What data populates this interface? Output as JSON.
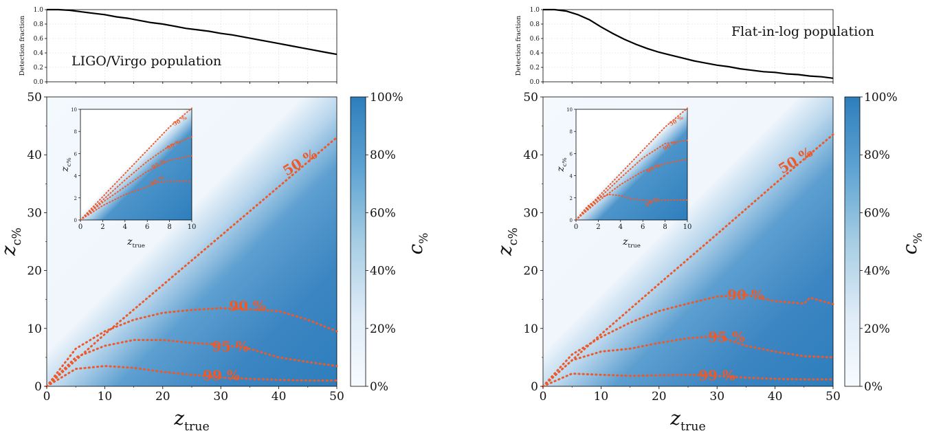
{
  "chart_data": [
    {
      "panel": "left",
      "type": "line",
      "role": "detection-fraction",
      "ylabel": "Detection fraction",
      "annotation": "LIGO/Virgo population",
      "xlim": [
        0,
        50
      ],
      "ylim": [
        0,
        1
      ],
      "yticks": [
        "0.0",
        "0.2",
        "0.4",
        "0.6",
        "0.8",
        "1.0"
      ],
      "grid": true,
      "x": [
        0,
        2,
        4,
        6,
        8,
        10,
        12,
        14,
        16,
        18,
        20,
        22,
        24,
        26,
        28,
        30,
        32,
        34,
        36,
        38,
        40,
        42,
        44,
        46,
        48,
        50
      ],
      "y": [
        1.0,
        1.0,
        0.99,
        0.97,
        0.95,
        0.93,
        0.9,
        0.88,
        0.85,
        0.82,
        0.8,
        0.77,
        0.74,
        0.72,
        0.7,
        0.67,
        0.65,
        0.62,
        0.59,
        0.56,
        0.53,
        0.5,
        0.47,
        0.44,
        0.41,
        0.38
      ]
    },
    {
      "panel": "left",
      "type": "heatmap",
      "xlabel": "z_true",
      "ylabel": "z_c%",
      "xlim": [
        0,
        50
      ],
      "ylim": [
        0,
        50
      ],
      "xticks": [
        "0",
        "10",
        "20",
        "30",
        "40",
        "50"
      ],
      "yticks": [
        "0",
        "10",
        "20",
        "30",
        "40",
        "50"
      ],
      "colorbar": {
        "label": "c%",
        "ticks": [
          "0%",
          "20%",
          "40%",
          "60%",
          "80%",
          "100%"
        ],
        "cmap": [
          "#f7fbff",
          "#2e7ebc"
        ]
      },
      "contours": [
        {
          "level": "50 %",
          "x": [
            0,
            10,
            20,
            30,
            40,
            50
          ],
          "y": [
            0,
            9,
            17.5,
            26,
            34.5,
            43
          ]
        },
        {
          "level": "90 %",
          "x": [
            0,
            5,
            10,
            15,
            20,
            25,
            30,
            35,
            40,
            45,
            50
          ],
          "y": [
            0,
            6.5,
            9.5,
            11.5,
            12.7,
            13.2,
            13.5,
            13.3,
            13,
            11.5,
            9.5
          ]
        },
        {
          "level": "95 %",
          "x": [
            0,
            5,
            10,
            15,
            20,
            25,
            30,
            35,
            40,
            45,
            50
          ],
          "y": [
            0,
            5,
            7,
            8,
            8,
            7.5,
            7.2,
            6.5,
            5,
            4.2,
            3.5
          ]
        },
        {
          "level": "99 %",
          "x": [
            0,
            5,
            10,
            15,
            20,
            25,
            30,
            35,
            40,
            45,
            50
          ],
          "y": [
            0,
            3,
            3.5,
            3.2,
            2.5,
            2,
            1.5,
            1.3,
            1.1,
            1.0,
            1.0
          ]
        }
      ],
      "inset": {
        "xlabel": "z_true",
        "ylabel": "z_c%",
        "xlim": [
          0,
          10
        ],
        "ylim": [
          0,
          10
        ],
        "xticks": [
          "0",
          "2",
          "4",
          "6",
          "8",
          "10"
        ],
        "yticks": [
          "0",
          "2",
          "4",
          "6",
          "8",
          "10"
        ],
        "contours": [
          {
            "level": "50 %",
            "x": [
              0,
              2,
              4,
              6,
              8,
              10
            ],
            "y": [
              0,
              2.1,
              4.2,
              6.3,
              8.4,
              10.1
            ]
          },
          {
            "level": "90 %",
            "x": [
              0,
              2,
              4,
              6,
              8,
              10
            ],
            "y": [
              0,
              1.8,
              3.6,
              5.3,
              6.7,
              7.5
            ]
          },
          {
            "level": "95 %",
            "x": [
              0,
              2,
              4,
              6,
              8,
              10
            ],
            "y": [
              0,
              1.6,
              3.0,
              4.4,
              5.4,
              5.8
            ]
          },
          {
            "level": "99 %",
            "x": [
              0,
              2,
              4,
              6,
              7,
              8,
              10
            ],
            "y": [
              0,
              1.3,
              2.3,
              3.0,
              3.4,
              3.5,
              3.5
            ]
          }
        ]
      }
    },
    {
      "panel": "right",
      "type": "line",
      "role": "detection-fraction",
      "ylabel": "Detection fraction",
      "annotation": "Flat-in-log population",
      "xlim": [
        0,
        50
      ],
      "ylim": [
        0,
        1
      ],
      "yticks": [
        "0.0",
        "0.2",
        "0.4",
        "0.6",
        "0.8",
        "1.0"
      ],
      "grid": true,
      "x": [
        0,
        2,
        4,
        6,
        8,
        10,
        12,
        14,
        16,
        18,
        20,
        22,
        24,
        26,
        28,
        30,
        32,
        34,
        36,
        38,
        40,
        42,
        44,
        46,
        48,
        50
      ],
      "y": [
        1.0,
        1.0,
        0.98,
        0.93,
        0.86,
        0.76,
        0.67,
        0.59,
        0.52,
        0.46,
        0.41,
        0.37,
        0.33,
        0.29,
        0.26,
        0.23,
        0.21,
        0.18,
        0.16,
        0.14,
        0.13,
        0.11,
        0.1,
        0.08,
        0.07,
        0.05
      ]
    },
    {
      "panel": "right",
      "type": "heatmap",
      "xlabel": "z_true",
      "ylabel": "z_c%",
      "xlim": [
        0,
        50
      ],
      "ylim": [
        0,
        50
      ],
      "xticks": [
        "0",
        "10",
        "20",
        "30",
        "40",
        "50"
      ],
      "yticks": [
        "0",
        "10",
        "20",
        "30",
        "40",
        "50"
      ],
      "colorbar": {
        "label": "c%",
        "ticks": [
          "0%",
          "20%",
          "40%",
          "60%",
          "80%",
          "100%"
        ],
        "cmap": [
          "#f7fbff",
          "#2e7ebc"
        ]
      },
      "contours": [
        {
          "level": "50 %",
          "x": [
            0,
            10,
            20,
            30,
            40,
            50
          ],
          "y": [
            0,
            9,
            17.7,
            26.3,
            35,
            43.5
          ]
        },
        {
          "level": "90 %",
          "x": [
            0,
            5,
            10,
            15,
            20,
            25,
            30,
            35,
            40,
            45,
            46,
            50
          ],
          "y": [
            0,
            5.5,
            8.5,
            11,
            13,
            14.3,
            15.5,
            15.8,
            14.7,
            14.3,
            15.3,
            14.2
          ]
        },
        {
          "level": "95 %",
          "x": [
            0,
            5,
            10,
            15,
            20,
            25,
            30,
            35,
            40,
            45,
            50
          ],
          "y": [
            0,
            4.5,
            6,
            6.5,
            7.5,
            8.3,
            8.7,
            7,
            6,
            5.2,
            5.0
          ]
        },
        {
          "level": "99 %",
          "x": [
            0,
            5,
            10,
            15,
            20,
            25,
            30,
            35,
            40,
            45,
            50
          ],
          "y": [
            0,
            2.2,
            2,
            1.8,
            1.9,
            2,
            1.8,
            1.5,
            1.3,
            1.2,
            1.2
          ]
        }
      ],
      "inset": {
        "xlabel": "z_true",
        "ylabel": "z_c%",
        "xlim": [
          0,
          10
        ],
        "ylim": [
          0,
          10
        ],
        "xticks": [
          "0",
          "2",
          "4",
          "6",
          "8",
          "10"
        ],
        "yticks": [
          "0",
          "2",
          "4",
          "6",
          "8",
          "10"
        ],
        "contours": [
          {
            "level": "50 %",
            "x": [
              0,
              2,
              4,
              6,
              8,
              10
            ],
            "y": [
              0,
              2.1,
              4.2,
              6.3,
              8.4,
              10.1
            ]
          },
          {
            "level": "90 %",
            "x": [
              0,
              2,
              4,
              6,
              8,
              10
            ],
            "y": [
              0,
              1.9,
              3.8,
              5.6,
              6.9,
              7.2
            ]
          },
          {
            "level": "95 %",
            "x": [
              0,
              2,
              4,
              6,
              8,
              10
            ],
            "y": [
              0,
              1.7,
              3.2,
              4.4,
              5.1,
              5.5
            ]
          },
          {
            "level": "99 %",
            "x": [
              0,
              1,
              2,
              3,
              4,
              5,
              6,
              7,
              8,
              9,
              10
            ],
            "y": [
              0,
              1.2,
              2.0,
              2.3,
              2.2,
              1.9,
              1.8,
              1.7,
              1.8,
              1.8,
              1.8
            ]
          }
        ]
      }
    }
  ]
}
